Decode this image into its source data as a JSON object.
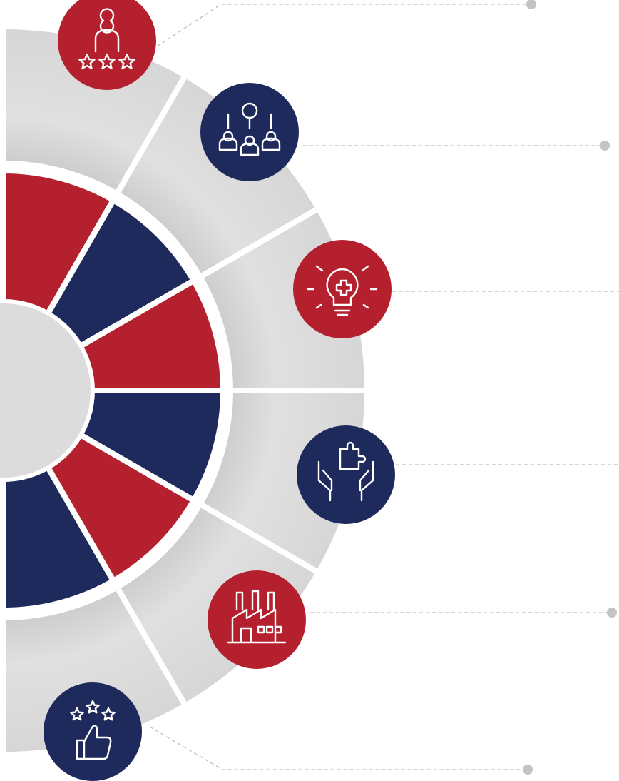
{
  "nodes": [
    {
      "color": "#b5202e"
    },
    {
      "color": "#1f2a5c"
    },
    {
      "color": "#b5202e"
    },
    {
      "color": "#1f2a5c"
    },
    {
      "color": "#b5202e"
    },
    {
      "color": "#1f2a5c"
    }
  ]
}
